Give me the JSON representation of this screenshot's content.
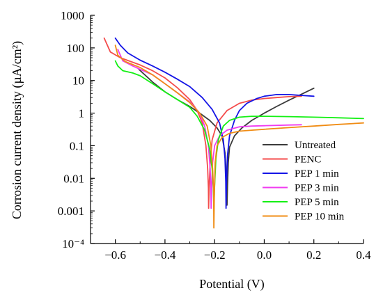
{
  "chart_data": {
    "type": "line",
    "title": "",
    "xlabel": "Potential (V)",
    "ylabel": "Corrosion current density (µA/cm²)",
    "x_scale": "linear",
    "y_scale": "log",
    "xlim": [
      -0.7,
      0.4
    ],
    "ylim": [
      0.0001,
      1000
    ],
    "x_ticks": [
      -0.6,
      -0.4,
      -0.2,
      0.0,
      0.2,
      0.4
    ],
    "x_tick_labels": [
      "−0.6",
      "−0.4",
      "−0.2",
      "0.0",
      "0.2",
      "0.4"
    ],
    "y_ticks": [
      1000,
      100,
      10,
      1,
      0.1,
      0.01,
      0.001,
      0.0001
    ],
    "y_tick_labels": [
      "1000",
      "100",
      "10",
      "1",
      "0.1",
      "0.01",
      "0.001",
      "10⁻⁴"
    ],
    "grid": false,
    "legend_position": "bottom-right",
    "series": [
      {
        "name": "Untreated",
        "color": "#3b3b3b",
        "points": [
          [
            -0.505,
            22
          ],
          [
            -0.45,
            9
          ],
          [
            -0.4,
            4.5
          ],
          [
            -0.35,
            2.6
          ],
          [
            -0.3,
            1.6
          ],
          [
            -0.26,
            1.0
          ],
          [
            -0.22,
            0.6
          ],
          [
            -0.19,
            0.35
          ],
          [
            -0.17,
            0.2
          ],
          [
            -0.158,
            0.06
          ],
          [
            -0.152,
            0.01
          ],
          [
            -0.151,
            0.003
          ],
          [
            -0.15,
            0.0015
          ],
          [
            -0.148,
            0.006
          ],
          [
            -0.145,
            0.03
          ],
          [
            -0.14,
            0.09
          ],
          [
            -0.12,
            0.2
          ],
          [
            -0.09,
            0.35
          ],
          [
            -0.05,
            0.6
          ],
          [
            0.0,
            1.0
          ],
          [
            0.05,
            1.6
          ],
          [
            0.1,
            2.5
          ],
          [
            0.15,
            3.8
          ],
          [
            0.2,
            5.8
          ]
        ]
      },
      {
        "name": "PENC",
        "color": "#f44b4b",
        "points": [
          [
            -0.645,
            200
          ],
          [
            -0.62,
            75
          ],
          [
            -0.58,
            50
          ],
          [
            -0.5,
            30
          ],
          [
            -0.45,
            20
          ],
          [
            -0.4,
            12
          ],
          [
            -0.35,
            6
          ],
          [
            -0.3,
            2.6
          ],
          [
            -0.27,
            1.2
          ],
          [
            -0.25,
            0.5
          ],
          [
            -0.235,
            0.1
          ],
          [
            -0.228,
            0.02
          ],
          [
            -0.225,
            0.005
          ],
          [
            -0.224,
            0.0012
          ],
          [
            -0.222,
            0.005
          ],
          [
            -0.218,
            0.03
          ],
          [
            -0.21,
            0.15
          ],
          [
            -0.19,
            0.5
          ],
          [
            -0.15,
            1.2
          ],
          [
            -0.1,
            2.0
          ],
          [
            -0.05,
            2.5
          ],
          [
            0.0,
            2.8
          ],
          [
            0.05,
            3.0
          ],
          [
            0.1,
            3.2
          ],
          [
            0.15,
            3.3
          ]
        ]
      },
      {
        "name": "PEP 1 min",
        "color": "#1414e6",
        "points": [
          [
            -0.6,
            200
          ],
          [
            -0.58,
            120
          ],
          [
            -0.55,
            70
          ],
          [
            -0.5,
            42
          ],
          [
            -0.45,
            28
          ],
          [
            -0.4,
            18
          ],
          [
            -0.35,
            11
          ],
          [
            -0.3,
            6.5
          ],
          [
            -0.25,
            3.0
          ],
          [
            -0.21,
            1.3
          ],
          [
            -0.18,
            0.5
          ],
          [
            -0.165,
            0.15
          ],
          [
            -0.158,
            0.04
          ],
          [
            -0.155,
            0.008
          ],
          [
            -0.154,
            0.0012
          ],
          [
            -0.152,
            0.008
          ],
          [
            -0.148,
            0.05
          ],
          [
            -0.14,
            0.2
          ],
          [
            -0.12,
            0.6
          ],
          [
            -0.1,
            1.2
          ],
          [
            -0.07,
            2.0
          ],
          [
            -0.03,
            2.8
          ],
          [
            0.0,
            3.3
          ],
          [
            0.05,
            3.7
          ],
          [
            0.1,
            3.7
          ],
          [
            0.15,
            3.5
          ],
          [
            0.2,
            3.3
          ]
        ]
      },
      {
        "name": "PEP 3 min",
        "color": "#f03cf0",
        "points": [
          [
            -0.59,
            90
          ],
          [
            -0.57,
            40
          ],
          [
            -0.53,
            28
          ],
          [
            -0.5,
            22
          ],
          [
            -0.45,
            15
          ],
          [
            -0.4,
            8
          ],
          [
            -0.35,
            4.2
          ],
          [
            -0.3,
            2.2
          ],
          [
            -0.26,
            1.0
          ],
          [
            -0.24,
            0.4
          ],
          [
            -0.225,
            0.1
          ],
          [
            -0.218,
            0.02
          ],
          [
            -0.215,
            0.005
          ],
          [
            -0.214,
            0.0012
          ],
          [
            -0.212,
            0.005
          ],
          [
            -0.208,
            0.03
          ],
          [
            -0.2,
            0.1
          ],
          [
            -0.18,
            0.2
          ],
          [
            -0.15,
            0.3
          ],
          [
            -0.1,
            0.38
          ],
          [
            -0.05,
            0.4
          ],
          [
            0.0,
            0.41
          ],
          [
            0.05,
            0.42
          ],
          [
            0.1,
            0.43
          ],
          [
            0.15,
            0.44
          ]
        ]
      },
      {
        "name": "PEP 5 min",
        "color": "#14f014",
        "points": [
          [
            -0.6,
            40
          ],
          [
            -0.59,
            28
          ],
          [
            -0.57,
            20
          ],
          [
            -0.53,
            17
          ],
          [
            -0.5,
            14
          ],
          [
            -0.45,
            8
          ],
          [
            -0.4,
            4.5
          ],
          [
            -0.35,
            2.6
          ],
          [
            -0.3,
            1.5
          ],
          [
            -0.27,
            0.8
          ],
          [
            -0.24,
            0.3
          ],
          [
            -0.22,
            0.08
          ],
          [
            -0.21,
            0.02
          ],
          [
            -0.205,
            0.005
          ],
          [
            -0.203,
            0.0012
          ],
          [
            -0.2,
            0.006
          ],
          [
            -0.195,
            0.04
          ],
          [
            -0.185,
            0.15
          ],
          [
            -0.165,
            0.4
          ],
          [
            -0.14,
            0.6
          ],
          [
            -0.1,
            0.75
          ],
          [
            -0.05,
            0.8
          ],
          [
            0.0,
            0.8
          ],
          [
            0.1,
            0.78
          ],
          [
            0.2,
            0.75
          ],
          [
            0.3,
            0.72
          ],
          [
            0.4,
            0.68
          ]
        ]
      },
      {
        "name": "PEP 10 min",
        "color": "#f08c14",
        "points": [
          [
            -0.6,
            120
          ],
          [
            -0.59,
            60
          ],
          [
            -0.56,
            38
          ],
          [
            -0.5,
            25
          ],
          [
            -0.45,
            15
          ],
          [
            -0.4,
            8
          ],
          [
            -0.35,
            4.2
          ],
          [
            -0.3,
            2.1
          ],
          [
            -0.26,
            1.0
          ],
          [
            -0.23,
            0.4
          ],
          [
            -0.215,
            0.1
          ],
          [
            -0.208,
            0.02
          ],
          [
            -0.204,
            0.004
          ],
          [
            -0.203,
            0.0003
          ],
          [
            -0.201,
            0.003
          ],
          [
            -0.198,
            0.03
          ],
          [
            -0.19,
            0.1
          ],
          [
            -0.17,
            0.18
          ],
          [
            -0.14,
            0.24
          ],
          [
            -0.1,
            0.28
          ],
          [
            -0.05,
            0.3
          ],
          [
            0.0,
            0.32
          ],
          [
            0.1,
            0.36
          ],
          [
            0.2,
            0.4
          ],
          [
            0.3,
            0.45
          ],
          [
            0.4,
            0.5
          ]
        ]
      }
    ]
  }
}
